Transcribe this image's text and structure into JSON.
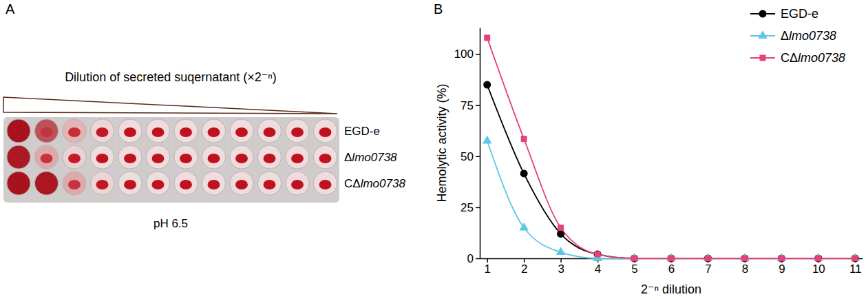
{
  "plate": {
    "panel_label": "A",
    "title": "Dilution of secreted suqernatant (×2⁻ⁿ)",
    "rows": [
      "EGD-e",
      "Δlmo0738",
      "CΔlmo0738"
    ],
    "caption": "pH 6.5"
  },
  "chart_data": {
    "type": "line",
    "panel_label": "B",
    "x_label": "2⁻ⁿ dilution",
    "y_label": "Hemolytic activity (%)",
    "x": [
      1,
      2,
      3,
      4,
      5,
      6,
      7,
      8,
      9,
      10,
      11
    ],
    "xlim": [
      0.8,
      11.2
    ],
    "xticks": [
      1,
      2,
      3,
      4,
      5,
      6,
      7,
      8,
      9,
      10,
      11
    ],
    "ylim": [
      0,
      113
    ],
    "yticks": [
      0,
      25,
      50,
      75,
      100
    ],
    "grid": false,
    "legend": "top-right",
    "series": [
      {
        "name": "EGD-e",
        "color": "#000000",
        "marker": "circle",
        "line_style": "solid",
        "values": [
          85,
          41.5,
          12,
          2,
          0,
          0,
          0,
          0,
          0,
          0,
          0
        ]
      },
      {
        "name": "Δlmo0738",
        "color": "#5cc8e6",
        "marker": "triangle",
        "line_style": "solid",
        "values": [
          57.5,
          15,
          3,
          0,
          0,
          0,
          0,
          0,
          0,
          0,
          0
        ]
      },
      {
        "name": "CΔlmo0738",
        "color": "#e8407a",
        "marker": "square",
        "line_style": "solid",
        "values": [
          108,
          58.5,
          15,
          2,
          0,
          0,
          0,
          0,
          0,
          0,
          0
        ]
      }
    ]
  }
}
